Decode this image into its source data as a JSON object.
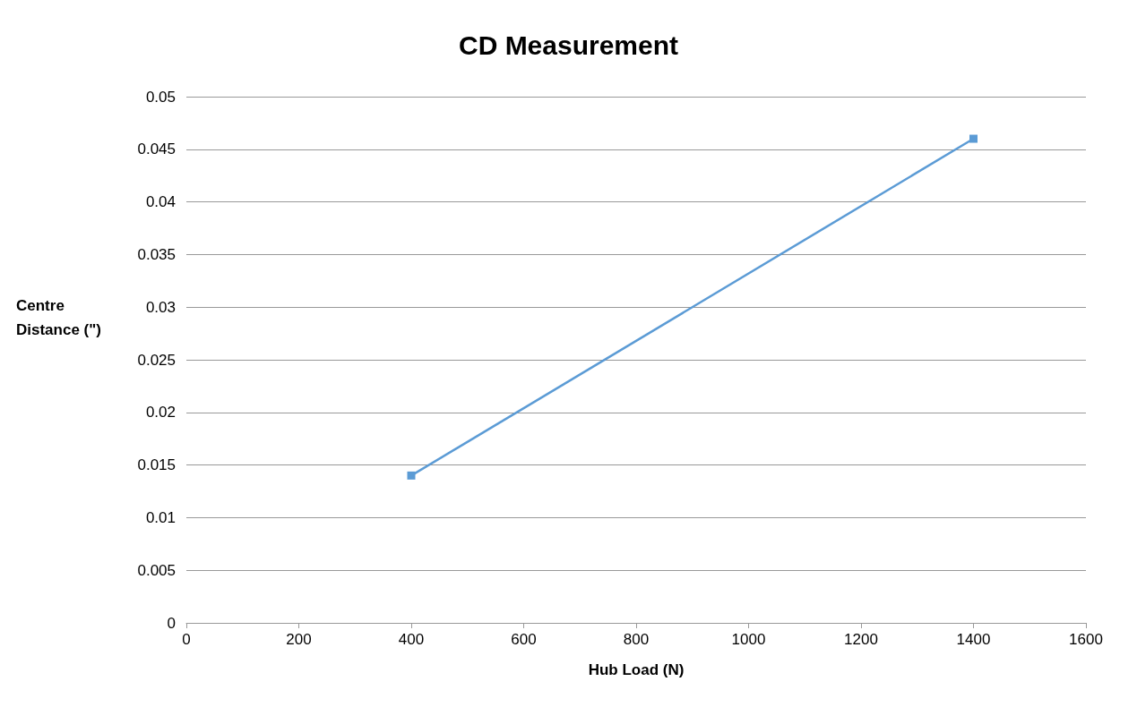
{
  "chart_data": {
    "type": "line",
    "title": "CD Measurement",
    "xlabel": "Hub Load (N)",
    "ylabel": "Centre Distance (\")",
    "x": [
      400,
      1400
    ],
    "series": [
      {
        "color": "#5b9bd5",
        "values": [
          0.014,
          0.046
        ]
      }
    ],
    "xlim": [
      0,
      1600
    ],
    "xticks": [
      0,
      200,
      400,
      600,
      800,
      1000,
      1200,
      1400,
      1600
    ],
    "ylim": [
      0,
      0.05
    ],
    "yticks": [
      0,
      0.005,
      0.01,
      0.015,
      0.02,
      0.025,
      0.03,
      0.035,
      0.04,
      0.045,
      0.05
    ],
    "grid": "y",
    "marker": "square",
    "line_style": "solid"
  }
}
